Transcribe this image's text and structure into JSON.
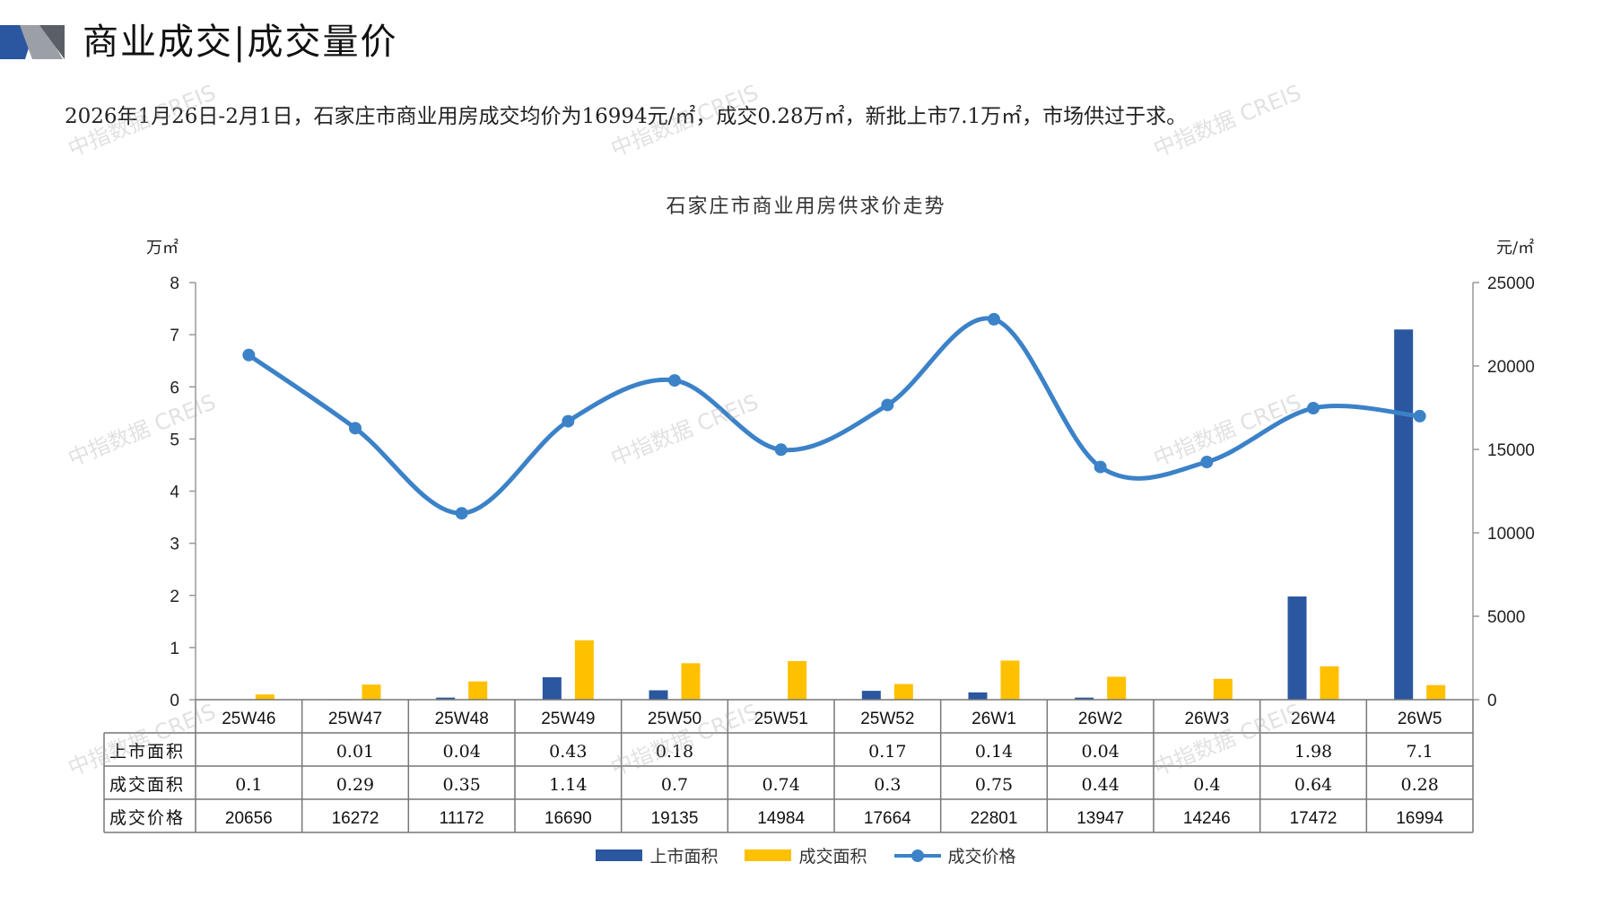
{
  "header": {
    "title": "商业成交|成交量价"
  },
  "summary": "2026年1月26日-2月1日，石家庄市商业用房成交均价为16994元/㎡，成交0.28万㎡，新批上市7.1万㎡，市场供过于求。",
  "watermark": "中指数据 CREIS",
  "colors": {
    "supply": "#2b57a0",
    "deal_area": "#ffc000",
    "price": "#3b82c8"
  },
  "chart_data": {
    "type": "bar",
    "title": "石家庄市商业用房供求价走势",
    "ylabel_left": "万㎡",
    "ylabel_right": "元/㎡",
    "ylim_left": [
      0,
      8
    ],
    "ylim_right": [
      0,
      25000
    ],
    "yticks_left": [
      "0",
      "1",
      "2",
      "3",
      "4",
      "5",
      "6",
      "7",
      "8"
    ],
    "yticks_right": [
      "0",
      "5000",
      "10000",
      "15000",
      "20000",
      "25000"
    ],
    "categories": [
      "25W46",
      "25W47",
      "25W48",
      "25W49",
      "25W50",
      "25W51",
      "25W52",
      "26W1",
      "26W2",
      "26W3",
      "26W4",
      "26W5"
    ],
    "series": [
      {
        "name": "上市面积",
        "type": "bar",
        "axis": "left",
        "values": [
          null,
          0.01,
          0.04,
          0.43,
          0.18,
          null,
          0.17,
          0.14,
          0.04,
          null,
          1.98,
          7.1
        ]
      },
      {
        "name": "成交面积",
        "type": "bar",
        "axis": "left",
        "values": [
          0.1,
          0.29,
          0.35,
          1.14,
          0.7,
          0.74,
          0.3,
          0.75,
          0.44,
          0.4,
          0.64,
          0.28
        ]
      },
      {
        "name": "成交价格",
        "type": "line",
        "axis": "right",
        "values": [
          20656,
          16272,
          11172,
          16690,
          19135,
          14984,
          17664,
          22801,
          13947,
          14246,
          17472,
          16994
        ]
      }
    ],
    "table_labels": {
      "supply": "上市面积",
      "deal_area": "成交面积",
      "price": "成交价格"
    },
    "table_rows": {
      "supply": [
        "",
        "0.01",
        "0.04",
        "0.43",
        "0.18",
        "",
        "0.17",
        "0.14",
        "0.04",
        "",
        "1.98",
        "7.1"
      ],
      "deal_area": [
        "0.1",
        "0.29",
        "0.35",
        "1.14",
        "0.7",
        "0.74",
        "0.3",
        "0.75",
        "0.44",
        "0.4",
        "0.64",
        "0.28"
      ],
      "price": [
        "20656",
        "16272",
        "11172",
        "16690",
        "19135",
        "14984",
        "17664",
        "22801",
        "13947",
        "14246",
        "17472",
        "16994"
      ]
    },
    "legend": [
      "上市面积",
      "成交面积",
      "成交价格"
    ],
    "legend_position": "bottom",
    "grid": false
  }
}
